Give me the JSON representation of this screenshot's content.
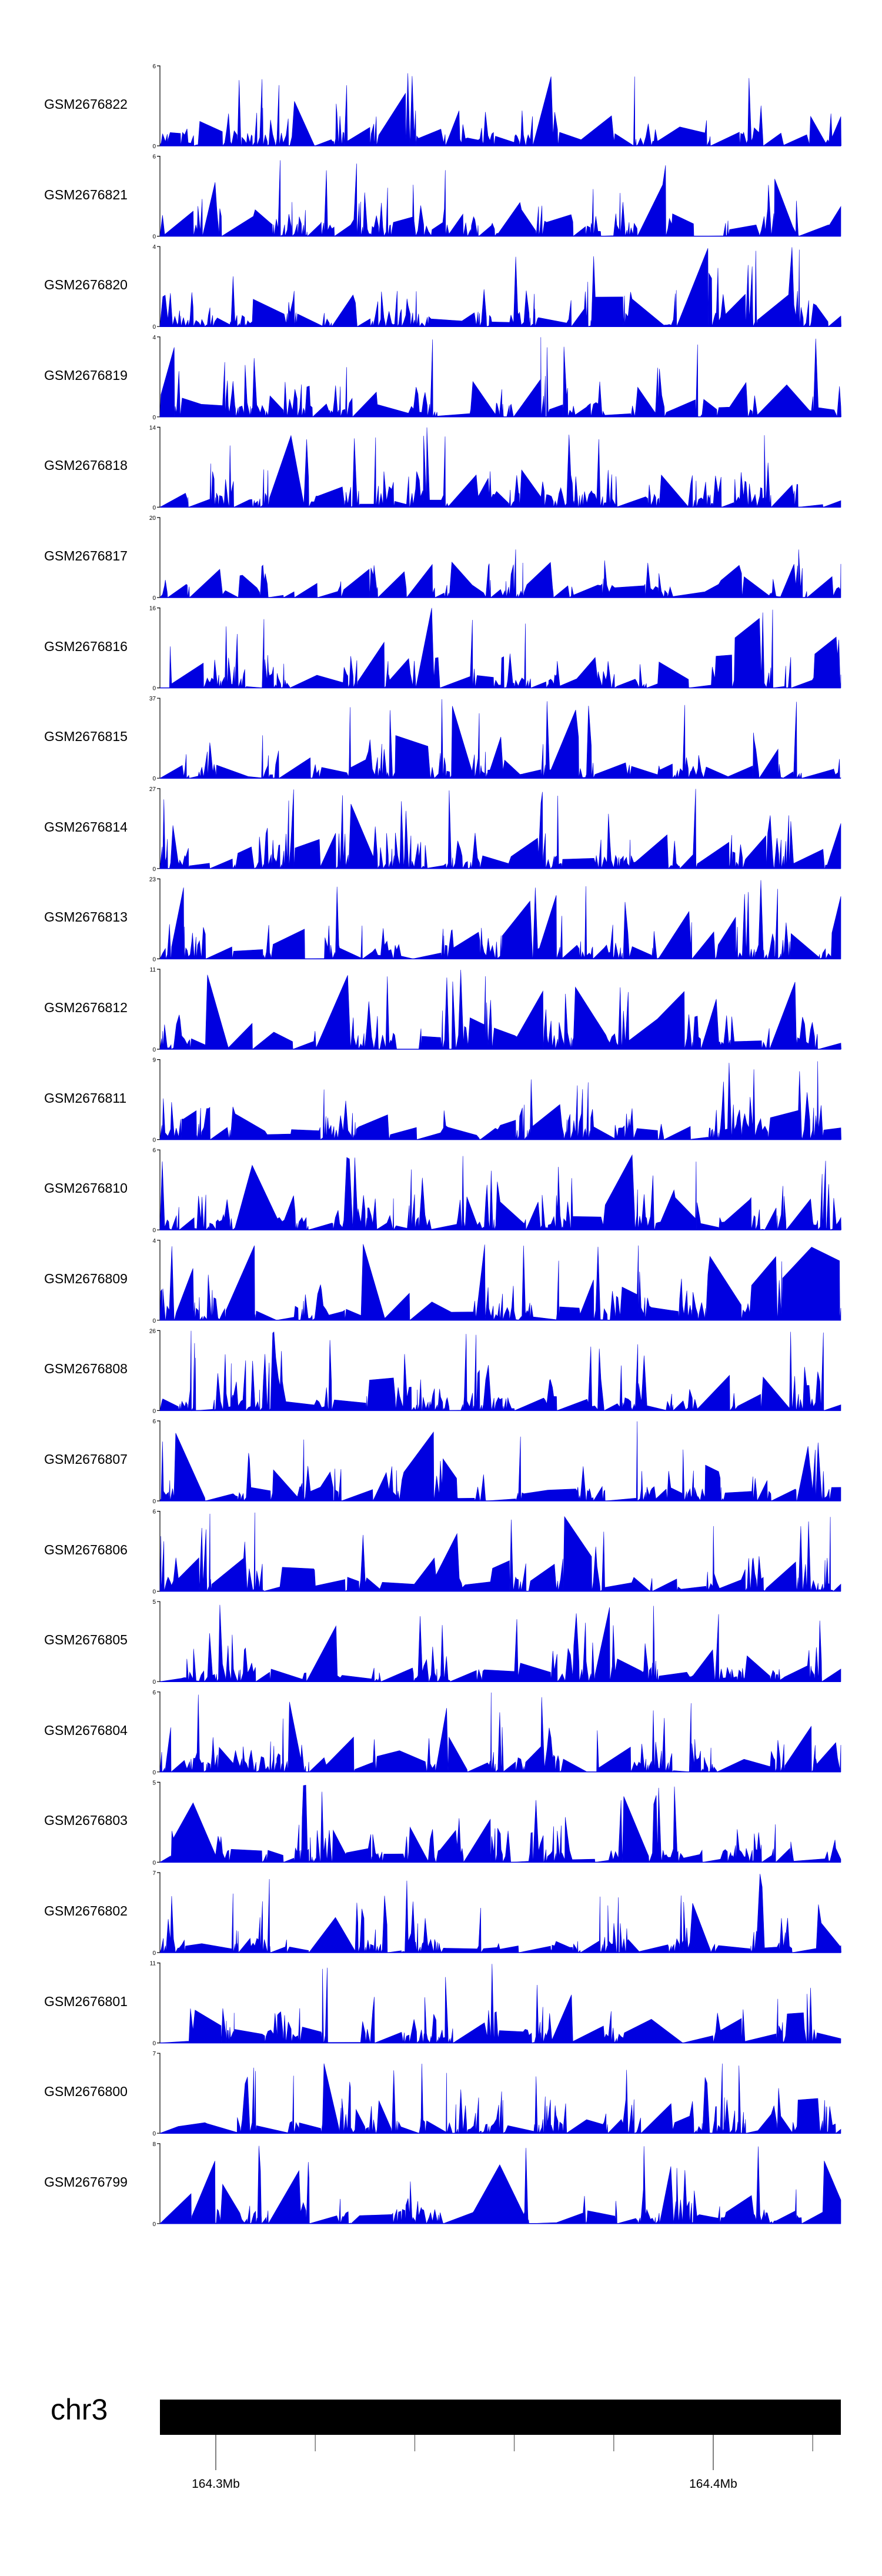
{
  "chart_data": {
    "type": "area",
    "series_color": "#0000e0",
    "tracks": [
      {
        "name": "GSM2676822",
        "ymax": "6",
        "ymin": "0",
        "seed": 11
      },
      {
        "name": "GSM2676821",
        "ymax": "6",
        "ymin": "0",
        "seed": 23
      },
      {
        "name": "GSM2676820",
        "ymax": "4",
        "ymin": "0",
        "seed": 37
      },
      {
        "name": "GSM2676819",
        "ymax": "4",
        "ymin": "0",
        "seed": 41
      },
      {
        "name": "GSM2676818",
        "ymax": "14",
        "ymin": "0",
        "seed": 53
      },
      {
        "name": "GSM2676817",
        "ymax": "20",
        "ymin": "0",
        "seed": 67
      },
      {
        "name": "GSM2676816",
        "ymax": "16",
        "ymin": "0",
        "seed": 71
      },
      {
        "name": "GSM2676815",
        "ymax": "37",
        "ymin": "0",
        "seed": 83
      },
      {
        "name": "GSM2676814",
        "ymax": "27",
        "ymin": "0",
        "seed": 97
      },
      {
        "name": "GSM2676813",
        "ymax": "23",
        "ymin": "0",
        "seed": 101
      },
      {
        "name": "GSM2676812",
        "ymax": "11",
        "ymin": "0",
        "seed": 113
      },
      {
        "name": "GSM2676811",
        "ymax": "9",
        "ymin": "0",
        "seed": 127
      },
      {
        "name": "GSM2676810",
        "ymax": "6",
        "ymin": "0",
        "seed": 131
      },
      {
        "name": "GSM2676809",
        "ymax": "4",
        "ymin": "0",
        "seed": 149
      },
      {
        "name": "GSM2676808",
        "ymax": "26",
        "ymin": "0",
        "seed": 151
      },
      {
        "name": "GSM2676807",
        "ymax": "6",
        "ymin": "0",
        "seed": 163
      },
      {
        "name": "GSM2676806",
        "ymax": "6",
        "ymin": "0",
        "seed": 173
      },
      {
        "name": "GSM2676805",
        "ymax": "5",
        "ymin": "0",
        "seed": 181
      },
      {
        "name": "GSM2676804",
        "ymax": "6",
        "ymin": "0",
        "seed": 191
      },
      {
        "name": "GSM2676803",
        "ymax": "5",
        "ymin": "0",
        "seed": 193
      },
      {
        "name": "GSM2676802",
        "ymax": "7",
        "ymin": "0",
        "seed": 197
      },
      {
        "name": "GSM2676801",
        "ymax": "11",
        "ymin": "0",
        "seed": 199
      },
      {
        "name": "GSM2676800",
        "ymax": "7",
        "ymin": "0",
        "seed": 211
      },
      {
        "name": "GSM2676799",
        "ymax": "8",
        "ymin": "0",
        "seed": 223
      }
    ],
    "genome_axis": {
      "chromosome": "chr3",
      "tick_labels": [
        {
          "label": "164.3Mb",
          "position": 164.3
        },
        {
          "label": "164.4Mb",
          "position": 164.4
        }
      ],
      "minor_ticks": [
        164.32,
        164.34,
        164.36,
        164.38,
        164.42
      ]
    }
  }
}
